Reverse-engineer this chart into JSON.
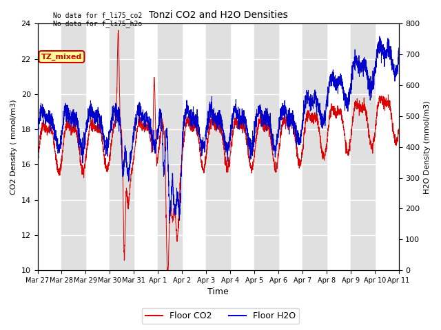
{
  "title": "Tonzi CO2 and H2O Densities",
  "xlabel": "Time",
  "ylabel_left": "CO2 Density ( mmol/m3)",
  "ylabel_right": "H2O Density (mmol/m3)",
  "ylim_left": [
    10,
    24
  ],
  "ylim_right": [
    0,
    800
  ],
  "yticks_left": [
    10,
    12,
    14,
    16,
    18,
    20,
    22,
    24
  ],
  "yticks_right": [
    0,
    100,
    200,
    300,
    400,
    500,
    600,
    700,
    800
  ],
  "annotations": [
    "No data for f_li75_co2",
    "No data for f_li75_h2o"
  ],
  "legend_label_co2": "Floor CO2",
  "legend_label_h2o": "Floor H2O",
  "text_box_label": "TZ_mixed",
  "text_box_color": "#cc0000",
  "text_box_bg": "#ffff99",
  "color_co2": "#dd0000",
  "color_h2o": "#0000cc",
  "background_color": "#ffffff",
  "band_color": "#e0e0e0",
  "x_tick_labels": [
    "Mar 27",
    "Mar 28",
    "Mar 29",
    "Mar 30",
    "Mar 31",
    "Apr 1",
    "Apr 2",
    "Apr 3",
    "Apr 4",
    "Apr 5",
    "Apr 6",
    "Apr 7",
    "Apr 8",
    "Apr 9",
    "Apr 10",
    "Apr 11"
  ],
  "x_tick_positions": [
    0,
    1,
    2,
    3,
    4,
    5,
    6,
    7,
    8,
    9,
    10,
    11,
    12,
    13,
    14,
    15
  ]
}
